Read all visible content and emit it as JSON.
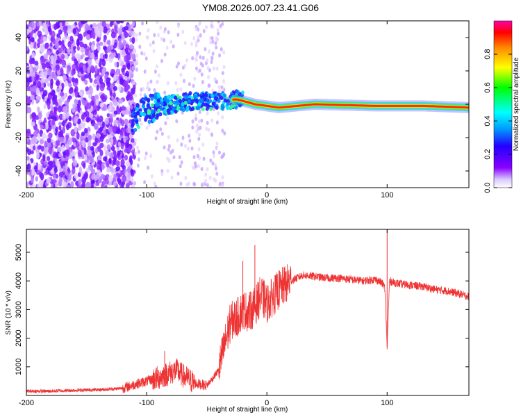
{
  "title": "YM08.2026.007.23.41.G06",
  "chart_data": [
    {
      "type": "heatmap",
      "title": "YM08.2026.007.23.41.G06",
      "xlabel": "Height of straight line (km)",
      "ylabel": "Frequency (Hz)",
      "xlim": [
        -200,
        168
      ],
      "ylim": [
        -50,
        50
      ],
      "xticks": [
        -200,
        -100,
        0,
        100
      ],
      "yticks": [
        -40,
        -20,
        0,
        20,
        40
      ],
      "colorbar": {
        "label": "Normalized spectral amplitude",
        "range": [
          0,
          1
        ],
        "ticks": [
          0.0,
          0.2,
          0.4,
          0.6,
          0.8
        ]
      },
      "ridge": [
        {
          "x": -112,
          "y": -10
        },
        {
          "x": -100,
          "y": -3
        },
        {
          "x": -80,
          "y": 0
        },
        {
          "x": -60,
          "y": 2
        },
        {
          "x": -40,
          "y": 2
        },
        {
          "x": -25,
          "y": 3
        },
        {
          "x": -10,
          "y": 0
        },
        {
          "x": 10,
          "y": -2
        },
        {
          "x": 40,
          "y": 0
        },
        {
          "x": 90,
          "y": -1
        },
        {
          "x": 130,
          "y": -1
        },
        {
          "x": 168,
          "y": -2
        }
      ]
    },
    {
      "type": "line",
      "xlabel": "Height of straight line (km)",
      "ylabel": "SNR (10 * v/v)",
      "xlim": [
        -200,
        168
      ],
      "ylim": [
        0,
        5800
      ],
      "xticks": [
        -200,
        -100,
        0,
        100
      ],
      "yticks": [
        1000,
        2000,
        3000,
        4000,
        5000
      ],
      "color": "#ee3333",
      "series": [
        {
          "name": "SNR",
          "x": [
            -200,
            -180,
            -160,
            -140,
            -120,
            -110,
            -100,
            -90,
            -80,
            -75,
            -70,
            -60,
            -50,
            -45,
            -40,
            -35,
            -30,
            -25,
            -20,
            -15,
            -10,
            -5,
            0,
            10,
            20,
            30,
            40,
            50,
            60,
            70,
            80,
            90,
            95,
            98,
            100,
            102,
            105,
            110,
            120,
            130,
            140,
            150,
            160,
            168
          ],
          "y": [
            150,
            150,
            180,
            200,
            250,
            380,
            500,
            620,
            800,
            880,
            700,
            420,
            350,
            600,
            900,
            1800,
            2600,
            2700,
            3000,
            2900,
            3100,
            3500,
            3200,
            3700,
            4000,
            4200,
            4150,
            4100,
            4100,
            4050,
            4000,
            4050,
            3950,
            3800,
            1700,
            4000,
            3950,
            3900,
            3850,
            3800,
            3700,
            3650,
            3550,
            3450
          ],
          "peaks": [
            {
              "x": -85,
              "y": 1550
            },
            {
              "x": -20,
              "y": 4700
            },
            {
              "x": -10,
              "y": 5250
            },
            {
              "x": 100,
              "y": 5800
            },
            {
              "x": 100,
              "y": 1700
            }
          ]
        }
      ]
    }
  ]
}
